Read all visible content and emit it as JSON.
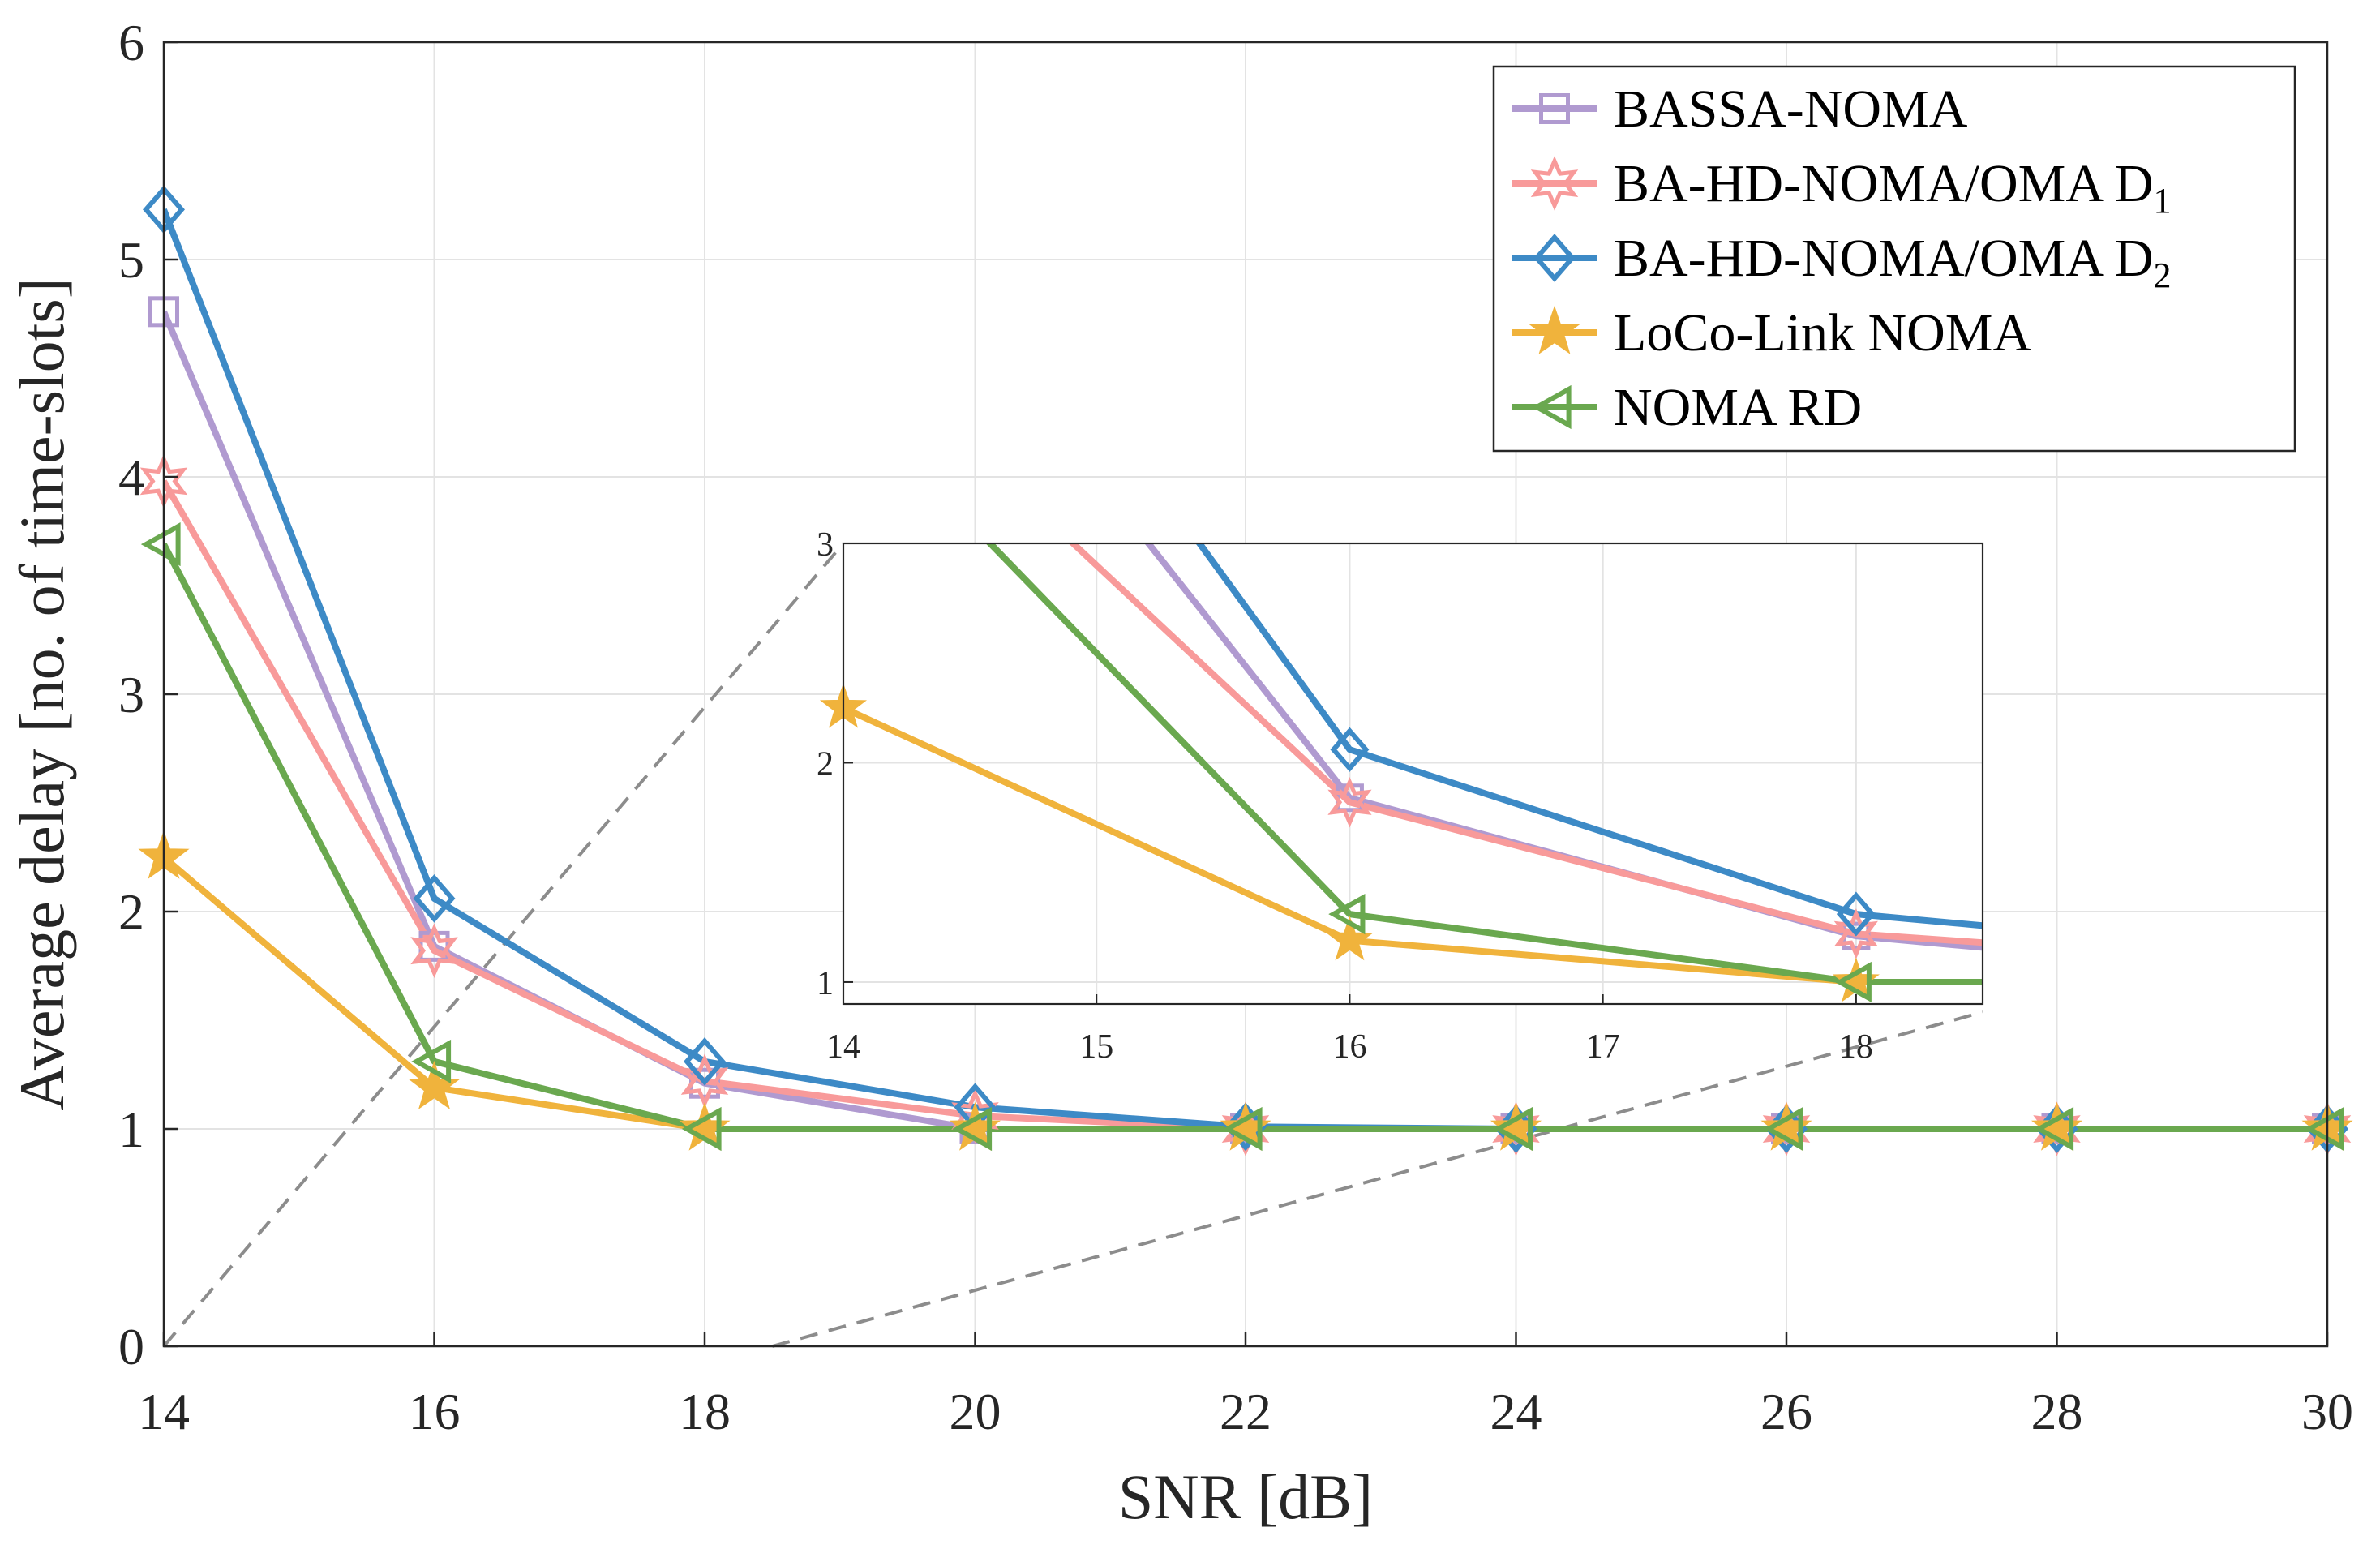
{
  "chart_data": {
    "type": "line",
    "title": "",
    "xlabel": "SNR [dB]",
    "ylabel": "Average delay [no. of time-slots]",
    "xlim": [
      14,
      30
    ],
    "ylim": [
      0,
      6
    ],
    "x_ticks": [
      "14",
      "16",
      "18",
      "20",
      "22",
      "24",
      "26",
      "28",
      "30"
    ],
    "y_ticks": [
      "0",
      "1",
      "2",
      "3",
      "4",
      "5",
      "6"
    ],
    "x": [
      14,
      16,
      18,
      20,
      22,
      24,
      26,
      28,
      30
    ],
    "grid": true,
    "legend_position": "top-right",
    "series": [
      {
        "name": "BASSA-NOMA",
        "legend_main": "BASSA-NOMA",
        "legend_sub": "",
        "color": "#b09ad0",
        "marker": "square",
        "values": [
          4.76,
          1.84,
          1.21,
          1.0,
          1.0,
          1.0,
          1.0,
          1.0,
          1.0
        ]
      },
      {
        "name": "BA-HD-NOMA/OMA D1",
        "legend_main": "BA-HD-NOMA/OMA D",
        "legend_sub": "1",
        "color": "#f89a9a",
        "marker": "hexagram",
        "values": [
          3.98,
          1.82,
          1.22,
          1.06,
          1.0,
          1.0,
          1.0,
          1.0,
          1.0
        ]
      },
      {
        "name": "BA-HD-NOMA/OMA D2",
        "legend_main": "BA-HD-NOMA/OMA D",
        "legend_sub": "2",
        "color": "#3d8ac6",
        "marker": "diamond",
        "values": [
          5.23,
          2.06,
          1.31,
          1.1,
          1.01,
          1.0,
          1.0,
          1.0,
          1.0
        ]
      },
      {
        "name": "LoCo-Link NOMA",
        "legend_main": "LoCo-Link NOMA",
        "legend_sub": "",
        "color": "#f0b33c",
        "marker": "pentagram",
        "values": [
          2.25,
          1.19,
          1.0,
          1.0,
          1.0,
          1.0,
          1.0,
          1.0,
          1.0
        ]
      },
      {
        "name": "NOMA RD",
        "legend_main": "NOMA RD",
        "legend_sub": "",
        "color": "#6aa84f",
        "marker": "triangle-left",
        "values": [
          3.69,
          1.31,
          1.0,
          1.0,
          1.0,
          1.0,
          1.0,
          1.0,
          1.0
        ]
      }
    ],
    "inset": {
      "xlim": [
        14,
        18.5
      ],
      "ylim": [
        0.9,
        3
      ],
      "x_ticks": [
        "14",
        "15",
        "16",
        "17",
        "18"
      ],
      "y_ticks": [
        "1",
        "2",
        "3"
      ]
    }
  }
}
